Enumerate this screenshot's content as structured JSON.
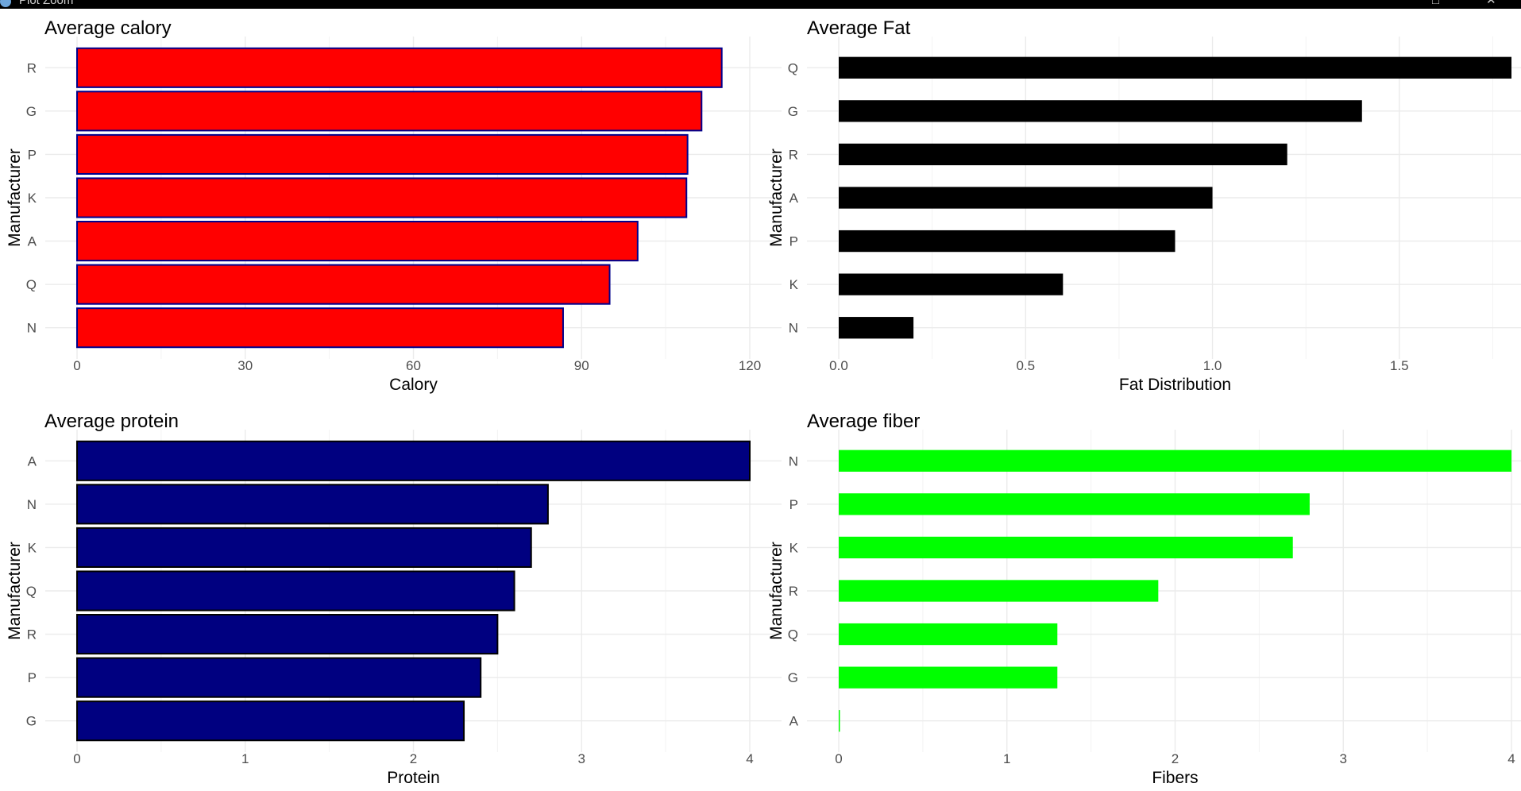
{
  "window": {
    "title": "Plot Zoom",
    "restore_glyph": "□",
    "close_glyph": "✕"
  },
  "chart_data": [
    {
      "type": "bar",
      "orientation": "horizontal",
      "title": "Average calory",
      "xlabel": "Calory",
      "ylabel": "Manufacturer",
      "categories": [
        "R",
        "G",
        "P",
        "K",
        "A",
        "Q",
        "N"
      ],
      "values": [
        115,
        111.4,
        108.9,
        108.7,
        100,
        95,
        86.7
      ],
      "xlim": [
        0,
        120
      ],
      "xticks": [
        0,
        30,
        60,
        90,
        120
      ],
      "xtick_labels": [
        "0",
        "30",
        "60",
        "90",
        "120"
      ],
      "fill_color": "#ff0000",
      "outline_color": "#00008b",
      "grid": true
    },
    {
      "type": "bar",
      "orientation": "horizontal",
      "title": "Average Fat",
      "xlabel": "Fat Distribution",
      "ylabel": "Manufacturer",
      "categories": [
        "Q",
        "G",
        "R",
        "A",
        "P",
        "K",
        "N"
      ],
      "values": [
        1.8,
        1.4,
        1.2,
        1.0,
        0.9,
        0.6,
        0.2
      ],
      "xlim": [
        0,
        1.8
      ],
      "xticks": [
        0,
        0.5,
        1.0,
        1.5
      ],
      "xtick_labels": [
        "0.0",
        "0.5",
        "1.0",
        "1.5"
      ],
      "fill_color": "#000000",
      "outline_color": "",
      "grid": true
    },
    {
      "type": "bar",
      "orientation": "horizontal",
      "title": "Average protein",
      "xlabel": "Protein",
      "ylabel": "Manufacturer",
      "categories": [
        "A",
        "N",
        "K",
        "Q",
        "R",
        "P",
        "G"
      ],
      "values": [
        4.0,
        2.8,
        2.7,
        2.6,
        2.5,
        2.4,
        2.3
      ],
      "xlim": [
        0,
        4
      ],
      "xticks": [
        0,
        1,
        2,
        3,
        4
      ],
      "xtick_labels": [
        "0",
        "1",
        "2",
        "3",
        "4"
      ],
      "fill_color": "#000080",
      "outline_color": "#000000",
      "grid": true
    },
    {
      "type": "bar",
      "orientation": "horizontal",
      "title": "Average fiber",
      "xlabel": "Fibers",
      "ylabel": "Manufacturer",
      "categories": [
        "N",
        "P",
        "K",
        "R",
        "Q",
        "G",
        "A"
      ],
      "values": [
        4.0,
        2.8,
        2.7,
        1.9,
        1.3,
        1.3,
        0.0
      ],
      "xlim": [
        0,
        4
      ],
      "xticks": [
        0,
        1,
        2,
        3,
        4
      ],
      "xtick_labels": [
        "0",
        "1",
        "2",
        "3",
        "4"
      ],
      "fill_color": "#00ff00",
      "outline_color": "",
      "grid": true
    }
  ]
}
